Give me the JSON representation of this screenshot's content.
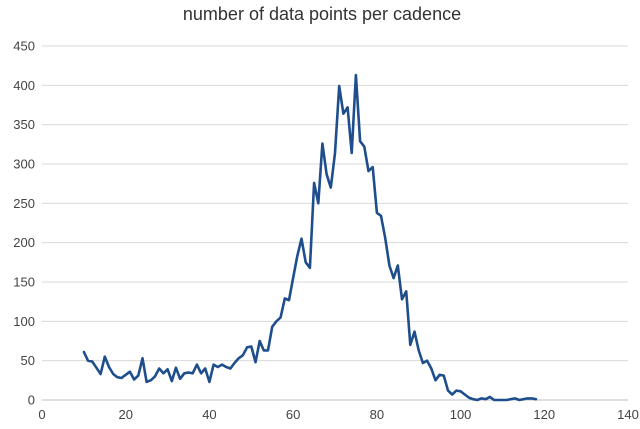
{
  "chart_data": {
    "type": "line",
    "title": "number of data points per cadence",
    "xlabel": "",
    "ylabel": "",
    "xlim": [
      0,
      140
    ],
    "ylim": [
      0,
      450
    ],
    "xticks": [
      0,
      20,
      40,
      60,
      80,
      100,
      120,
      140
    ],
    "yticks": [
      0,
      50,
      100,
      150,
      200,
      250,
      300,
      350,
      400,
      450
    ],
    "grid": true,
    "legend": "none",
    "line_color": "#1f4e8c",
    "series": [
      {
        "x": [
          10,
          11,
          12,
          13,
          14,
          15,
          16,
          17,
          18,
          19,
          20,
          21,
          22,
          23,
          24,
          25,
          26,
          27,
          28,
          29,
          30,
          31,
          32,
          33,
          34,
          35,
          36,
          37,
          38,
          39,
          40,
          41,
          42,
          43,
          44,
          45,
          46,
          47,
          48,
          49,
          50,
          51,
          52,
          53,
          54,
          55,
          56,
          57,
          58,
          59,
          60,
          61,
          62,
          63,
          64,
          65,
          66,
          67,
          68,
          69,
          70,
          71,
          72,
          73,
          74,
          75,
          76,
          77,
          78,
          79,
          80,
          81,
          82,
          83,
          84,
          85,
          86,
          87,
          88,
          89,
          90,
          91,
          92,
          93,
          94,
          95,
          96,
          97,
          98,
          99,
          100,
          101,
          102,
          103,
          104,
          105,
          106,
          107,
          108,
          109,
          110,
          111,
          112,
          113,
          114,
          115,
          116,
          117,
          118
        ],
        "values": [
          61,
          50,
          49,
          41,
          33,
          55,
          42,
          33,
          29,
          28,
          32,
          36,
          26,
          31,
          53,
          23,
          25,
          30,
          40,
          34,
          39,
          24,
          41,
          27,
          34,
          35,
          34,
          45,
          34,
          40,
          23,
          45,
          42,
          45,
          42,
          40,
          47,
          53,
          57,
          67,
          68,
          48,
          75,
          63,
          63,
          93,
          100,
          105,
          129,
          127,
          155,
          183,
          205,
          175,
          168,
          276,
          250,
          326,
          287,
          270,
          314,
          399,
          364,
          372,
          314,
          413,
          329,
          322,
          291,
          296,
          238,
          234,
          206,
          171,
          155,
          171,
          128,
          138,
          70,
          87,
          63,
          47,
          50,
          40,
          25,
          32,
          31,
          12,
          7,
          12,
          11,
          7,
          3,
          1,
          0,
          2,
          1,
          4,
          0,
          0,
          0,
          0,
          1,
          2,
          0,
          1,
          2,
          2,
          1
        ]
      }
    ]
  }
}
